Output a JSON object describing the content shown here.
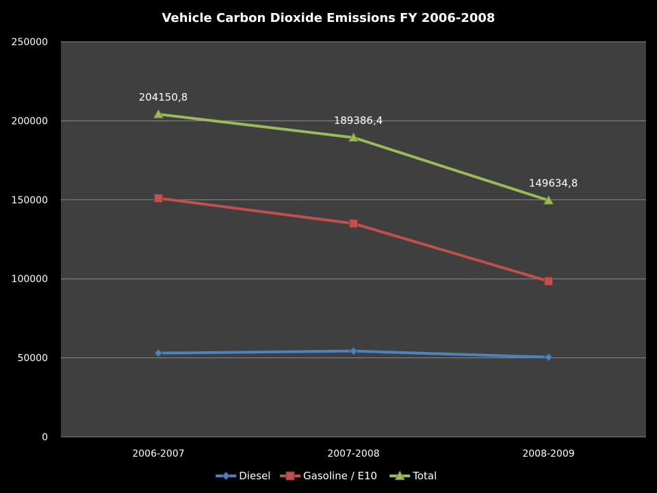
{
  "chart_data": {
    "type": "line",
    "title": "Vehicle Carbon Dioxide Emissions FY 2006-2008",
    "xlabel": "",
    "ylabel": "",
    "categories": [
      "2006-2007",
      "2007-2008",
      "2008-2009"
    ],
    "ylim": [
      0,
      250000
    ],
    "yticks": [
      0,
      50000,
      100000,
      150000,
      200000,
      250000
    ],
    "y_tick_labels": [
      "0",
      "50000",
      "100000",
      "150000",
      "200000",
      "250000"
    ],
    "grid": true,
    "legend_position": "bottom",
    "background_color": "#000000",
    "plot_background_color": "#3f3f3f",
    "gridline_color": "#8c8c8c",
    "series": [
      {
        "name": "Diesel",
        "values": [
          53000,
          54300,
          50400
        ],
        "color": "#4f81bd",
        "marker": "diamond",
        "data_labels": []
      },
      {
        "name": "Gasoline / E10",
        "values": [
          151000,
          135000,
          98500
        ],
        "color": "#c0504d",
        "marker": "square",
        "data_labels": []
      },
      {
        "name": "Total",
        "values": [
          204150.8,
          189386.4,
          149634.8
        ],
        "color": "#9bbb59",
        "marker": "triangle",
        "data_labels": [
          "204150,8",
          "189386,4",
          "149634,8"
        ]
      }
    ]
  }
}
